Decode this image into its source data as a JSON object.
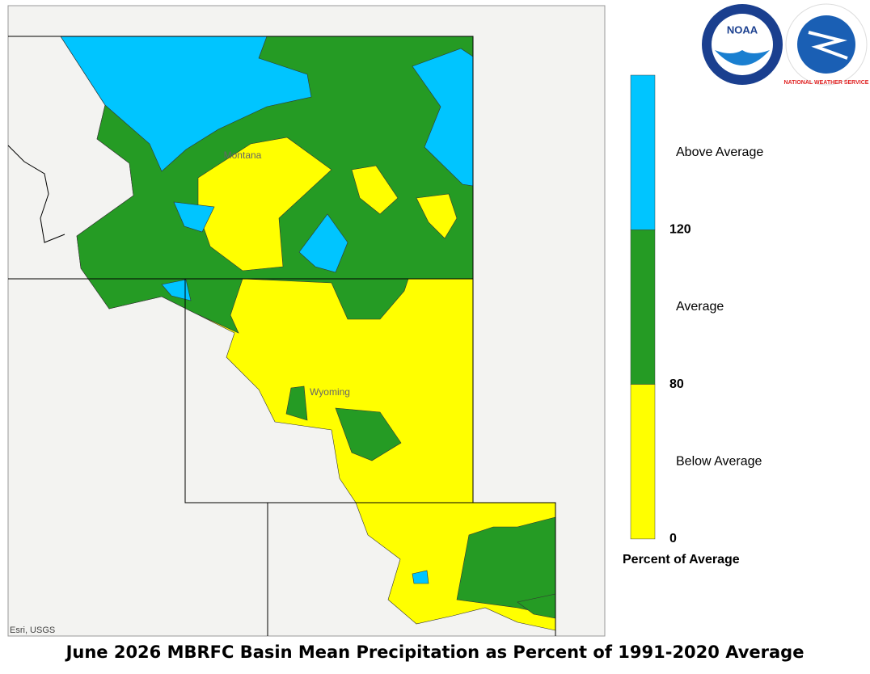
{
  "title": "June 2026 MBRFC Basin Mean Precipitation as Percent of 1991-2020 Average",
  "map": {
    "attribution": "Esri, USGS",
    "state_labels": [
      "Montana",
      "Wyoming"
    ]
  },
  "legend": {
    "title": "Percent of Average",
    "classes": [
      {
        "label": "Above Average",
        "color": "#00c5ff"
      },
      {
        "label": "Average",
        "color": "#259b24"
      },
      {
        "label": "Below Average",
        "color": "#ffff00"
      }
    ],
    "breaks": [
      120,
      80,
      0
    ]
  },
  "logos": {
    "noaa": "NOAA",
    "nws": "NATIONAL WEATHER SERVICE"
  }
}
